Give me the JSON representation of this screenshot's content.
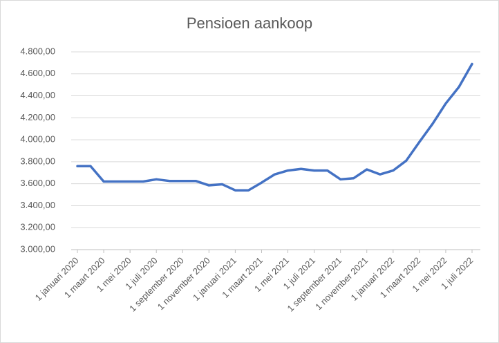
{
  "chart_data": {
    "type": "line",
    "title": "Pensioen aankoop",
    "categories": [
      "1 januari 2020",
      null,
      "1 maart 2020",
      null,
      "1 mei 2020",
      null,
      "1 juli 2020",
      null,
      "1 september 2020",
      null,
      "1 november 2020",
      null,
      "1 januari 2021",
      null,
      "1 maart 2021",
      null,
      "1 mei 2021",
      null,
      "1 juli 2021",
      null,
      "1 september 2021",
      null,
      "1 november 2021",
      null,
      "1 januari 2022",
      null,
      "1 maart 2022",
      null,
      "1 mei 2022",
      null,
      "1 juli 2022"
    ],
    "series": [
      {
        "name": "Pensioen aankoop",
        "color": "#4472c4",
        "values": [
          3760,
          3760,
          3620,
          3620,
          3620,
          3620,
          3640,
          3625,
          3625,
          3625,
          3585,
          3595,
          3540,
          3540,
          3610,
          3685,
          3720,
          3735,
          3720,
          3720,
          3640,
          3650,
          3730,
          3685,
          3720,
          3810,
          3980,
          4145,
          4330,
          4480,
          4690
        ]
      }
    ],
    "ylim": [
      3000,
      4800
    ],
    "yticks": [
      {
        "value": 3000,
        "label": "3.000,00"
      },
      {
        "value": 3200,
        "label": "3.200,00"
      },
      {
        "value": 3400,
        "label": "3.400,00"
      },
      {
        "value": 3600,
        "label": "3.600,00"
      },
      {
        "value": 3800,
        "label": "3.800,00"
      },
      {
        "value": 4000,
        "label": "4.000,00"
      },
      {
        "value": 4200,
        "label": "4.200,00"
      },
      {
        "value": 4400,
        "label": "4.400,00"
      },
      {
        "value": 4600,
        "label": "4.600,00"
      },
      {
        "value": 4800,
        "label": "4.800,00"
      }
    ],
    "grid": true
  }
}
